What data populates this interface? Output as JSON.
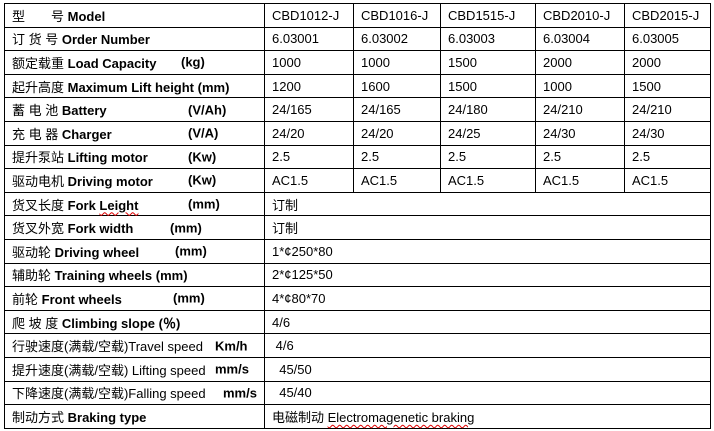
{
  "models": [
    "CBD1012-J",
    "CBD1016-J",
    "CBD1515-J",
    "CBD2010-J",
    "CBD2015-J"
  ],
  "rows": [
    {
      "cn": "型　　号 ",
      "en": "Model",
      "unit": ""
    },
    {
      "cn": "订 货 号 ",
      "en": "Order Number",
      "unit": "",
      "values": [
        "6.03001",
        "6.03002",
        "6.03003",
        "6.03004",
        "6.03005"
      ]
    },
    {
      "cn": "额定载重  ",
      "en": "Load Capacity",
      "unit": "(kg)",
      "values": [
        "1000",
        "1000",
        "1500",
        "2000",
        "2000"
      ]
    },
    {
      "cn": "起升高度 ",
      "en": "Maximum Lift height (mm)",
      "unit": "",
      "values": [
        "1200",
        "1600",
        "1500",
        "1000",
        "1500"
      ]
    },
    {
      "cn": "蓄 电 池 ",
      "en": "Battery",
      "unit": "(V/Ah)",
      "values": [
        "24/165",
        "24/165",
        "24/180",
        "24/210",
        "24/210"
      ]
    },
    {
      "cn": "充  电  器 ",
      "en": "Charger",
      "unit": "(V/A)",
      "values": [
        "24/20",
        "24/20",
        "24/25",
        "24/30",
        "24/30"
      ]
    },
    {
      "cn": "提升泵站 ",
      "en": "Lifting motor",
      "unit": "(Kw)",
      "values": [
        "2.5",
        "2.5",
        "2.5",
        "2.5",
        "2.5"
      ]
    },
    {
      "cn": "驱动电机 ",
      "en": "Driving motor",
      "unit": "(Kw)",
      "values": [
        "AC1.5",
        "AC1.5",
        "AC1.5",
        "AC1.5",
        "AC1.5"
      ]
    },
    {
      "cn": "货叉长度 ",
      "en_a": "Fork ",
      "en_b": "Leight",
      "unit": "(mm)",
      "value": "订制"
    },
    {
      "cn": "货叉外宽 ",
      "en": "Fork width",
      "unit": "(mm)",
      "value": "订制"
    },
    {
      "cn": "驱动轮  ",
      "en": "Driving wheel",
      "unit": "(mm)",
      "value": "1*¢250*80"
    },
    {
      "cn": "辅助轮 ",
      "en": "Training wheels (mm)",
      "unit": "",
      "value": "2*¢125*50"
    },
    {
      "cn": "前轮 ",
      "en": "Front wheels",
      "unit": "(mm)",
      "value": "4*¢80*70"
    },
    {
      "cn": "爬  坡  度  ",
      "en": "Climbing slope (％)",
      "unit": "",
      "value": "4/6"
    },
    {
      "cn": "行驶速度(满载/空载)Travel speed",
      "unit": "Km/h",
      "value": " 4/6"
    },
    {
      "cn": "提升速度(满载/空载) Lifting speed",
      "unit": "mm/s",
      "value": "  45/50"
    },
    {
      "cn": "下降速度(满载/空载)Falling speed",
      "unit": "mm/s",
      "value": "  45/40"
    },
    {
      "cn": "制动方式 ",
      "en": "Braking type",
      "unit": "",
      "value_cn": "电磁制动 ",
      "value_en": "Electromagenetic braking"
    }
  ]
}
